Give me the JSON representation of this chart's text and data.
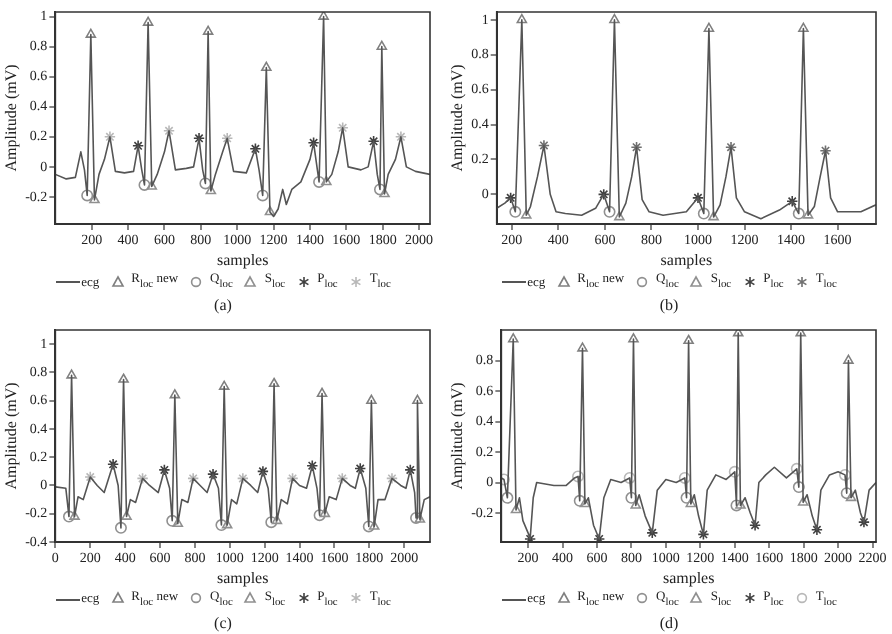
{
  "chart_data": [
    {
      "type": "line",
      "xlabel": "samples",
      "ylabel": "Amplitude (mV)",
      "xlim": [
        0,
        2060
      ],
      "ylim": [
        -0.38,
        1.03
      ],
      "xticks": [
        200,
        400,
        600,
        800,
        1000,
        1200,
        1400,
        1600,
        1800,
        2000
      ],
      "yticks": [
        -0.2,
        0,
        0.2,
        0.4,
        0.6,
        0.8,
        1
      ],
      "legend": "bottom",
      "annotations": [
        "(a)"
      ],
      "series": [
        {
          "name": "ecg",
          "type": "line",
          "color": "#555555",
          "marker": "none",
          "x": [
            0,
            60,
            110,
            140,
            160,
            175,
            195,
            215,
            240,
            270,
            300,
            330,
            380,
            430,
            455,
            475,
            490,
            510,
            530,
            560,
            600,
            625,
            660,
            720,
            760,
            790,
            810,
            825,
            840,
            855,
            880,
            920,
            945,
            980,
            1050,
            1100,
            1120,
            1140,
            1160,
            1180,
            1200,
            1225,
            1250,
            1270,
            1300,
            1350,
            1400,
            1420,
            1450,
            1475,
            1490,
            1520,
            1555,
            1580,
            1610,
            1680,
            1720,
            1750,
            1770,
            1785,
            1795,
            1810,
            1830,
            1870,
            1900,
            1930,
            1980,
            2060
          ],
          "values": [
            -0.05,
            -0.08,
            -0.07,
            0.1,
            -0.02,
            -0.19,
            0.88,
            -0.22,
            -0.05,
            0.05,
            0.2,
            -0.03,
            -0.04,
            -0.03,
            0.14,
            -0.02,
            -0.12,
            0.96,
            -0.13,
            -0.05,
            0.1,
            0.24,
            -0.02,
            -0.01,
            0,
            0.19,
            -0.02,
            -0.11,
            0.9,
            -0.16,
            -0.05,
            0.1,
            0.19,
            -0.03,
            -0.04,
            0.12,
            -0.02,
            -0.19,
            0.66,
            -0.3,
            -0.33,
            -0.28,
            -0.15,
            -0.25,
            -0.15,
            -0.1,
            0.05,
            0.16,
            -0.1,
            1,
            -0.1,
            -0.05,
            0.1,
            0.26,
            0,
            -0.02,
            0,
            0.17,
            -0.05,
            -0.15,
            0.8,
            -0.18,
            -0.05,
            0.05,
            0.2,
            0,
            -0.03,
            -0.05
          ]
        },
        {
          "name": "R$_{loc}$ new",
          "type": "scatter",
          "color": "#808080",
          "marker": "triangle",
          "x": [
            195,
            510,
            840,
            1160,
            1475,
            1795
          ],
          "values": [
            0.88,
            0.96,
            0.9,
            0.66,
            1,
            0.8
          ]
        },
        {
          "name": "Q$_{loc}$",
          "type": "scatter",
          "color": "#909090",
          "marker": "circle",
          "x": [
            175,
            490,
            825,
            1140,
            1450,
            1785
          ],
          "values": [
            -0.19,
            -0.12,
            -0.11,
            -0.19,
            -0.1,
            -0.15
          ]
        },
        {
          "name": "S$_{loc}$",
          "type": "scatter",
          "color": "#909090",
          "marker": "triangle",
          "x": [
            215,
            530,
            855,
            1180,
            1490,
            1810
          ],
          "values": [
            -0.22,
            -0.13,
            -0.16,
            -0.3,
            -0.1,
            -0.18
          ]
        },
        {
          "name": "P$_{loc}$",
          "type": "scatter",
          "color": "#404040",
          "marker": "cross",
          "x": [
            455,
            790,
            1100,
            1420,
            1750
          ],
          "values": [
            0.14,
            0.19,
            0.12,
            0.16,
            0.17
          ]
        },
        {
          "name": "T$_{loc}$",
          "type": "scatter",
          "color": "#b8b8b8",
          "marker": "cross",
          "x": [
            300,
            625,
            945,
            1580,
            1900
          ],
          "values": [
            0.2,
            0.24,
            0.19,
            0.26,
            0.2
          ]
        }
      ]
    },
    {
      "type": "line",
      "xlabel": "samples",
      "ylabel": "Amplitude (mV)",
      "xlim": [
        135,
        1765
      ],
      "ylim": [
        -0.17,
        1.045
      ],
      "xticks": [
        200,
        400,
        600,
        800,
        1000,
        1200,
        1400,
        1600
      ],
      "yticks": [
        0,
        0.2,
        0.4,
        0.6,
        0.8,
        1
      ],
      "legend": "bottom",
      "annotations": [
        "(b)"
      ],
      "series": [
        {
          "name": "ecg",
          "type": "line",
          "color": "#555555",
          "marker": "none",
          "x": [
            135,
            170,
            195,
            215,
            243,
            262,
            280,
            310,
            338,
            365,
            390,
            430,
            500,
            560,
            595,
            620,
            641,
            662,
            690,
            715,
            736,
            760,
            790,
            850,
            950,
            1000,
            1025,
            1047,
            1067,
            1095,
            1120,
            1142,
            1165,
            1200,
            1270,
            1350,
            1405,
            1433,
            1453,
            1473,
            1500,
            1525,
            1548,
            1570,
            1600,
            1700,
            1765
          ],
          "values": [
            -0.08,
            -0.05,
            -0.02,
            -0.1,
            1,
            -0.12,
            -0.07,
            0.1,
            0.28,
            0,
            -0.1,
            -0.11,
            -0.12,
            -0.08,
            0,
            -0.1,
            1,
            -0.13,
            -0.05,
            0.1,
            0.27,
            -0.03,
            -0.1,
            -0.12,
            -0.1,
            -0.02,
            -0.11,
            0.95,
            -0.13,
            -0.06,
            0.1,
            0.27,
            -0.02,
            -0.1,
            -0.14,
            -0.09,
            -0.04,
            -0.11,
            0.95,
            -0.12,
            -0.07,
            0.1,
            0.25,
            -0.02,
            -0.1,
            -0.1,
            -0.06
          ]
        },
        {
          "name": "R$_{loc}$ new",
          "type": "scatter",
          "color": "#808080",
          "marker": "triangle",
          "x": [
            243,
            641,
            1047,
            1453
          ],
          "values": [
            1,
            1,
            0.95,
            0.95
          ]
        },
        {
          "name": "Q$_{loc}$",
          "type": "scatter",
          "color": "#909090",
          "marker": "circle",
          "x": [
            215,
            620,
            1025,
            1433
          ],
          "values": [
            -0.1,
            -0.1,
            -0.11,
            -0.11
          ]
        },
        {
          "name": "S$_{loc}$",
          "type": "scatter",
          "color": "#909090",
          "marker": "triangle",
          "x": [
            262,
            662,
            1067,
            1473
          ],
          "values": [
            -0.12,
            -0.13,
            -0.13,
            -0.12
          ]
        },
        {
          "name": "P$_{loc}$",
          "type": "scatter",
          "color": "#404040",
          "marker": "cross",
          "x": [
            195,
            595,
            1000,
            1405
          ],
          "values": [
            -0.02,
            0,
            -0.02,
            -0.04
          ]
        },
        {
          "name": "T$_{loc}$",
          "type": "scatter",
          "color": "#707070",
          "marker": "cross",
          "x": [
            338,
            736,
            1142,
            1548
          ],
          "values": [
            0.28,
            0.27,
            0.27,
            0.25
          ]
        }
      ]
    },
    {
      "type": "line",
      "xlabel": "samples",
      "ylabel": "Amplitude (mV)",
      "xlim": [
        0,
        2148
      ],
      "ylim": [
        -0.4,
        1.1
      ],
      "xticks": [
        0,
        200,
        400,
        600,
        800,
        1000,
        1200,
        1400,
        1600,
        1800,
        2000
      ],
      "yticks": [
        -0.4,
        -0.2,
        0,
        0.2,
        0.4,
        0.6,
        0.8,
        1
      ],
      "legend": "bottom",
      "annotations": [
        "(c)"
      ],
      "series": [
        {
          "name": "ecg",
          "type": "line",
          "color": "#555555",
          "marker": "none",
          "x": [
            0,
            60,
            78,
            93,
            110,
            130,
            160,
            200,
            240,
            280,
            331,
            360,
            376,
            391,
            408,
            430,
            460,
            500,
            540,
            590,
            625,
            655,
            670,
            685,
            702,
            725,
            760,
            790,
            830,
            870,
            904,
            935,
            952,
            968,
            985,
            1010,
            1040,
            1075,
            1120,
            1160,
            1190,
            1220,
            1238,
            1254,
            1270,
            1295,
            1330,
            1360,
            1400,
            1440,
            1473,
            1500,
            1515,
            1529,
            1545,
            1570,
            1610,
            1645,
            1690,
            1720,
            1748,
            1780,
            1797,
            1812,
            1828,
            1850,
            1890,
            1930,
            1980,
            2010,
            2035,
            2060,
            2068,
            2076,
            2090,
            2115,
            2148
          ],
          "values": [
            -0.01,
            -0.02,
            -0.22,
            0.78,
            -0.22,
            -0.08,
            -0.1,
            0.06,
            0,
            -0.05,
            0.15,
            0,
            -0.3,
            0.75,
            -0.22,
            -0.1,
            -0.12,
            0.05,
            0,
            -0.05,
            0.11,
            -0.02,
            -0.25,
            0.64,
            -0.27,
            -0.1,
            -0.12,
            0.05,
            0,
            -0.05,
            0.08,
            -0.02,
            -0.28,
            0.7,
            -0.28,
            -0.1,
            -0.13,
            0.05,
            0,
            -0.05,
            0.1,
            -0.02,
            -0.26,
            0.72,
            -0.25,
            -0.1,
            -0.13,
            0.05,
            0,
            -0.02,
            0.14,
            -0.02,
            -0.21,
            0.65,
            -0.2,
            -0.08,
            -0.1,
            0.05,
            0,
            -0.02,
            0.12,
            -0.02,
            -0.29,
            0.6,
            -0.29,
            -0.1,
            -0.1,
            0.05,
            0,
            -0.02,
            0.11,
            -0.05,
            -0.23,
            0.6,
            -0.24,
            -0.1,
            -0.08
          ]
        },
        {
          "name": "R$_{loc}$ new",
          "type": "scatter",
          "color": "#808080",
          "marker": "triangle",
          "x": [
            93,
            391,
            685,
            968,
            1254,
            1529,
            1812,
            2076
          ],
          "values": [
            0.78,
            0.75,
            0.64,
            0.7,
            0.72,
            0.65,
            0.6,
            0.6
          ]
        },
        {
          "name": "Q$_{loc}$",
          "type": "scatter",
          "color": "#909090",
          "marker": "circle",
          "x": [
            78,
            376,
            670,
            952,
            1238,
            1515,
            1797,
            2068
          ],
          "values": [
            -0.22,
            -0.3,
            -0.25,
            -0.28,
            -0.26,
            -0.21,
            -0.29,
            -0.23
          ]
        },
        {
          "name": "S$_{loc}$",
          "type": "scatter",
          "color": "#909090",
          "marker": "triangle",
          "x": [
            110,
            408,
            702,
            985,
            1270,
            1545,
            1828,
            2090
          ],
          "values": [
            -0.22,
            -0.22,
            -0.27,
            -0.28,
            -0.25,
            -0.2,
            -0.29,
            -0.24
          ]
        },
        {
          "name": "P$_{loc}$",
          "type": "scatter",
          "color": "#404040",
          "marker": "cross",
          "x": [
            331,
            625,
            904,
            1190,
            1473,
            1748,
            2035
          ],
          "values": [
            0.15,
            0.11,
            0.08,
            0.1,
            0.14,
            0.12,
            0.11
          ]
        },
        {
          "name": "T$_{loc}$",
          "type": "scatter",
          "color": "#b8b8b8",
          "marker": "cross",
          "x": [
            200,
            500,
            790,
            1075,
            1360,
            1645,
            1930
          ],
          "values": [
            0.06,
            0.05,
            0.05,
            0.05,
            0.05,
            0.05,
            0.05
          ]
        }
      ]
    },
    {
      "type": "line",
      "xlabel": "samples",
      "ylabel": "Amplitude (mV)",
      "xlim": [
        45,
        2220
      ],
      "ylim": [
        -0.39,
        1
      ],
      "xticks": [
        200,
        400,
        600,
        800,
        1000,
        1200,
        1400,
        1600,
        1800,
        2000,
        2200
      ],
      "yticks": [
        -0.2,
        0,
        0.2,
        0.4,
        0.6,
        0.8
      ],
      "legend": "bottom",
      "annotations": [
        "(d)"
      ],
      "series": [
        {
          "name": "ecg",
          "type": "line",
          "color": "#555555",
          "marker": "none",
          "x": [
            45,
            60,
            80,
            114,
            130,
            150,
            170,
            200,
            212,
            230,
            250,
            300,
            350,
            420,
            470,
            490,
            500,
            516,
            530,
            550,
            580,
            613,
            640,
            680,
            740,
            790,
            800,
            812,
            825,
            845,
            880,
            921,
            950,
            1000,
            1060,
            1110,
            1120,
            1132,
            1145,
            1165,
            1190,
            1218,
            1240,
            1290,
            1350,
            1400,
            1410,
            1420,
            1433,
            1460,
            1490,
            1518,
            1540,
            1580,
            1630,
            1700,
            1760,
            1772,
            1783,
            1797,
            1820,
            1850,
            1877,
            1900,
            1950,
            2000,
            2040,
            2050,
            2060,
            2075,
            2100,
            2130,
            2150,
            2180,
            2220
          ],
          "values": [
            0.03,
            0.02,
            -0.1,
            0.94,
            -0.18,
            -0.1,
            -0.25,
            -0.33,
            -0.37,
            -0.1,
            0,
            -0.01,
            -0.02,
            -0.02,
            0.03,
            0.04,
            -0.12,
            0.88,
            -0.14,
            -0.1,
            -0.28,
            -0.37,
            -0.1,
            0.02,
            0,
            0.03,
            -0.1,
            0.94,
            -0.15,
            -0.08,
            -0.22,
            -0.33,
            -0.05,
            0.02,
            0,
            0.03,
            -0.1,
            0.93,
            -0.14,
            -0.08,
            -0.22,
            -0.34,
            -0.05,
            0.05,
            0.02,
            0.07,
            -0.15,
            0.98,
            -0.15,
            -0.1,
            -0.2,
            -0.28,
            0,
            0.05,
            0.1,
            0.03,
            0.09,
            -0.03,
            0.98,
            -0.13,
            -0.08,
            -0.22,
            -0.31,
            -0.05,
            0.05,
            0.07,
            0.05,
            -0.07,
            0.8,
            -0.1,
            -0.05,
            -0.2,
            -0.26,
            -0.05,
            0
          ]
        },
        {
          "name": "R$_{loc}$ new",
          "type": "scatter",
          "color": "#808080",
          "marker": "triangle",
          "x": [
            114,
            516,
            812,
            1132,
            1420,
            1783,
            2060
          ],
          "values": [
            0.94,
            0.88,
            0.94,
            0.93,
            0.98,
            0.98,
            0.8
          ]
        },
        {
          "name": "Q$_{loc}$",
          "type": "scatter",
          "color": "#909090",
          "marker": "circle",
          "x": [
            80,
            500,
            800,
            1120,
            1410,
            1772,
            2050
          ],
          "values": [
            -0.1,
            -0.12,
            -0.1,
            -0.1,
            -0.15,
            -0.03,
            -0.07
          ]
        },
        {
          "name": "S$_{loc}$",
          "type": "scatter",
          "color": "#909090",
          "marker": "triangle",
          "x": [
            130,
            530,
            825,
            1145,
            1433,
            1797,
            2075
          ],
          "values": [
            -0.18,
            -0.14,
            -0.15,
            -0.14,
            -0.15,
            -0.13,
            -0.1
          ]
        },
        {
          "name": "P$_{loc}$",
          "type": "scatter",
          "color": "#404040",
          "marker": "cross",
          "x": [
            212,
            613,
            921,
            1218,
            1518,
            1877,
            2150
          ],
          "values": [
            -0.37,
            -0.37,
            -0.33,
            -0.34,
            -0.28,
            -0.31,
            -0.26
          ]
        },
        {
          "name": "T$_{loc}$",
          "type": "scatter",
          "color": "#b8b8b8",
          "marker": "circle",
          "x": [
            60,
            490,
            790,
            1110,
            1400,
            1760,
            2040
          ],
          "values": [
            0.02,
            0.04,
            0.03,
            0.03,
            0.07,
            0.09,
            0.05
          ]
        }
      ]
    }
  ]
}
